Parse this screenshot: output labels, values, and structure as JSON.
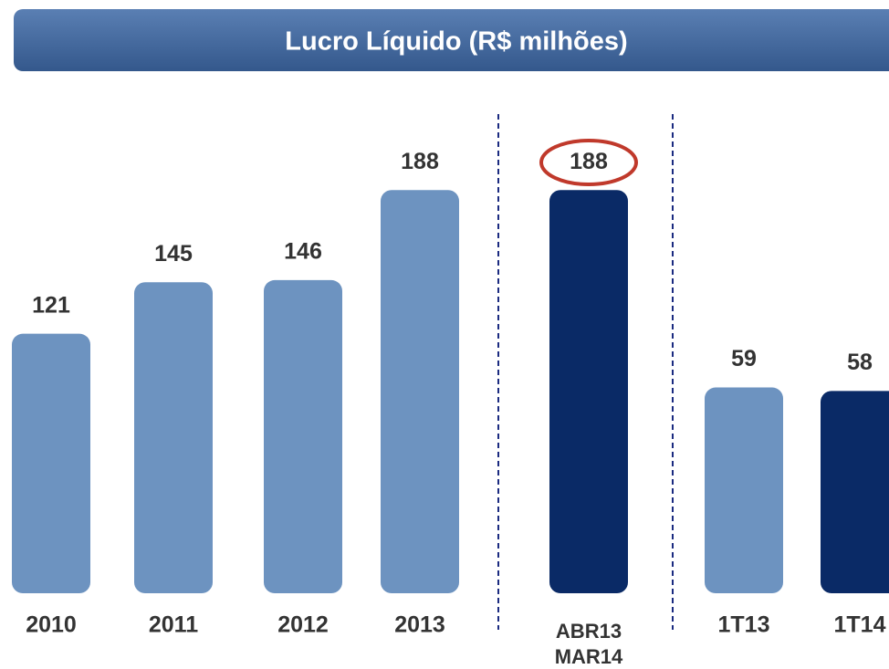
{
  "chart_data": {
    "type": "bar",
    "title": "Lucro Líquido (R$ milhões)",
    "categories": [
      "2010",
      "2011",
      "2012",
      "2013",
      "ABR13\nMAR14",
      "1T13",
      "1T14"
    ],
    "series": [
      {
        "values": [
          121,
          145,
          146,
          188,
          188,
          null,
          null
        ],
        "colors": [
          "#6d93c0",
          "#6d93c0",
          "#6d93c0",
          "#6d93c0",
          "#0a2a66",
          null,
          null
        ]
      },
      {
        "axis": "y2",
        "values": [
          null,
          null,
          null,
          null,
          null,
          59,
          58
        ],
        "colors": [
          null,
          null,
          null,
          null,
          null,
          "#6d93c0",
          "#0a2a66"
        ]
      }
    ],
    "ylim": [
      0,
      200
    ],
    "y2lim": [
      0,
      123
    ]
  }
}
